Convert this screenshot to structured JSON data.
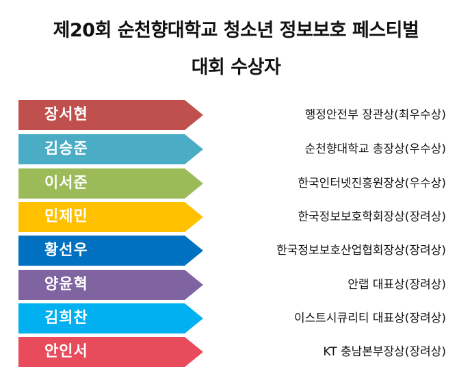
{
  "title": {
    "line1": "제20회 순천향대학교 청소년 정보보호 페스티벌",
    "line2": "대회 수상자"
  },
  "winners": [
    {
      "name": "장서현",
      "award": "행정안전부 장관상(최우수상)",
      "color": "#c0504d"
    },
    {
      "name": "김승준",
      "award": "순천향대학교 총장상(우수상)",
      "color": "#4bacc6"
    },
    {
      "name": "이서준",
      "award": "한국인터넷진흥원장상(우수상)",
      "color": "#9bbb59"
    },
    {
      "name": "민제민",
      "award": "한국정보보호학회장상(장려상)",
      "color": "#ffc000"
    },
    {
      "name": "황선우",
      "award": "한국정보보호산업협회장상(장려상)",
      "color": "#0070c0"
    },
    {
      "name": "양윤혁",
      "award": "안랩 대표상(장려상)",
      "color": "#8064a2"
    },
    {
      "name": "김희찬",
      "award": "이스트시큐리티 대표상(장려상)",
      "color": "#00b0f0"
    },
    {
      "name": "안인서",
      "award": "KT 충남본부장상(장려상)",
      "color": "#e84c5c"
    }
  ]
}
